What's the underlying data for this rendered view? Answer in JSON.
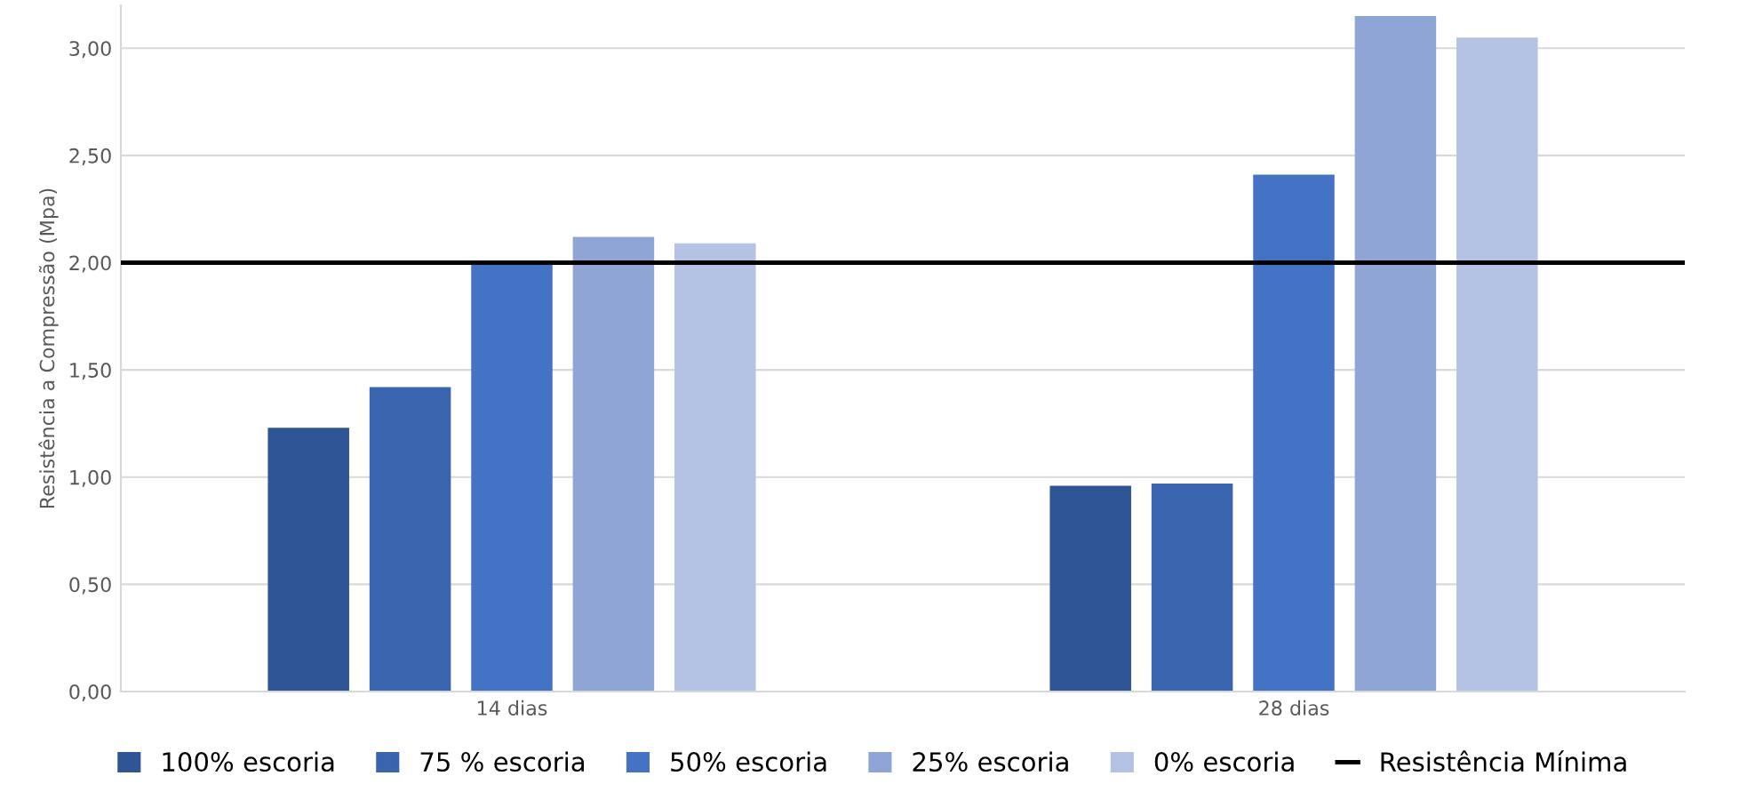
{
  "chart_data": {
    "type": "bar",
    "ylabel": "Resistência a Compressão (Mpa)",
    "categories": [
      "14 dias",
      "28 dias"
    ],
    "series": [
      {
        "name": "100% escoria",
        "color": "#2f5597",
        "values": [
          1.23,
          0.96
        ]
      },
      {
        "name": "75 % escoria",
        "color": "#3a64ae",
        "values": [
          1.42,
          0.97
        ]
      },
      {
        "name": "50% escoria",
        "color": "#4472c4",
        "values": [
          2.01,
          2.41
        ]
      },
      {
        "name": "25% escoria",
        "color": "#8fa5d6",
        "values": [
          2.12,
          3.15
        ]
      },
      {
        "name": "0% escoria",
        "color": "#b4c2e3",
        "values": [
          2.09,
          3.05
        ]
      }
    ],
    "ylim": [
      0,
      3.2
    ],
    "yticks": [
      {
        "value": 0,
        "label": "0,00"
      },
      {
        "value": 0.5,
        "label": "0,50"
      },
      {
        "value": 1,
        "label": "1,00"
      },
      {
        "value": 1.5,
        "label": "1,50"
      },
      {
        "value": 2,
        "label": "2,00"
      },
      {
        "value": 2.5,
        "label": "2,50"
      },
      {
        "value": 3,
        "label": "3,00"
      }
    ],
    "ref_lines": [
      {
        "axis": "y",
        "value": 2.0,
        "label": "Resistência Mínima",
        "color": "#000000",
        "line_style": "solid"
      }
    ],
    "grid": "y",
    "legend": "bottom"
  }
}
